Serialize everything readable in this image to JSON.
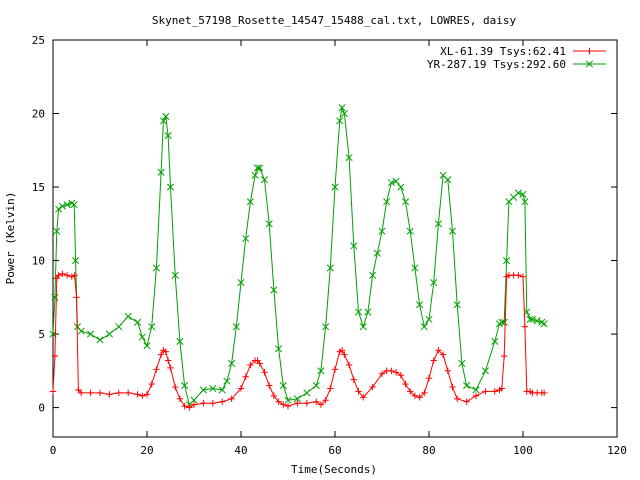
{
  "chart_data": {
    "type": "line",
    "title": "Skynet_57198_Rosette_14547_15488_cal.txt, LOWRES, daisy",
    "xlabel": "Time(Seconds)",
    "ylabel": "Power (Kelvin)",
    "xlim": [
      0,
      120
    ],
    "ylim": [
      -2,
      25
    ],
    "xticks": [
      0,
      20,
      40,
      60,
      80,
      100,
      120
    ],
    "yticks": [
      0,
      5,
      10,
      15,
      20,
      25
    ],
    "grid": false,
    "legend_position": "top-right",
    "series": [
      {
        "name": "XL-61.39 Tsys:62.41",
        "color": "#ff0000",
        "marker": "plus",
        "x": [
          0,
          0.4,
          0.8,
          1.2,
          2,
          3,
          4,
          4.6,
          5,
          5.4,
          6,
          8,
          10,
          12,
          14,
          16,
          18,
          19,
          20,
          21,
          22,
          23,
          23.5,
          24,
          24.5,
          25,
          26,
          27,
          28,
          29,
          30,
          32,
          34,
          36,
          38,
          40,
          41,
          42,
          43,
          43.5,
          44,
          45,
          46,
          47,
          48,
          49,
          50,
          52,
          54,
          56,
          57,
          58,
          59,
          60,
          61,
          61.5,
          62,
          63,
          64,
          65,
          66,
          68,
          70,
          71,
          72,
          73,
          74,
          75,
          76,
          77,
          78,
          79,
          80,
          81,
          82,
          83,
          84,
          85,
          86,
          88,
          90,
          92,
          94,
          95,
          95.5,
          96,
          96.5,
          97,
          98,
          99,
          100,
          100.4,
          100.8,
          101.5,
          102,
          103,
          104,
          104.5
        ],
        "y": [
          1.1,
          3.5,
          8.8,
          9.0,
          9.1,
          9.0,
          8.9,
          9.0,
          7.5,
          1.2,
          1.0,
          1.0,
          1.0,
          0.9,
          1.0,
          1.0,
          0.9,
          0.8,
          0.9,
          1.6,
          2.6,
          3.6,
          3.9,
          3.8,
          3.2,
          2.7,
          1.4,
          0.6,
          0.1,
          0.0,
          0.2,
          0.3,
          0.3,
          0.4,
          0.6,
          1.3,
          2.1,
          2.9,
          3.2,
          3.2,
          3.0,
          2.4,
          1.5,
          0.8,
          0.4,
          0.2,
          0.1,
          0.3,
          0.3,
          0.4,
          0.2,
          0.5,
          1.3,
          2.6,
          3.8,
          3.9,
          3.6,
          2.9,
          1.9,
          1.1,
          0.7,
          1.4,
          2.3,
          2.5,
          2.5,
          2.4,
          2.2,
          1.6,
          1.1,
          0.8,
          0.7,
          1.0,
          2.0,
          3.2,
          3.9,
          3.6,
          2.5,
          1.4,
          0.6,
          0.4,
          0.8,
          1.1,
          1.1,
          1.2,
          1.3,
          3.5,
          8.9,
          9.0,
          9.0,
          9.0,
          8.9,
          5.5,
          1.1,
          1.1,
          1.0,
          1.0,
          1.0,
          1.0
        ]
      },
      {
        "name": "YR-287.19 Tsys:292.60",
        "color": "#00a000",
        "marker": "x",
        "x": [
          0,
          0.4,
          0.8,
          1.2,
          2,
          3,
          4,
          4.5,
          4.8,
          5.2,
          6,
          8,
          10,
          12,
          14,
          16,
          18,
          19,
          20,
          21,
          22,
          23,
          23.5,
          24,
          24.5,
          25,
          26,
          27,
          28,
          29,
          30,
          32,
          34,
          36,
          37,
          38,
          39,
          40,
          41,
          42,
          43,
          43.5,
          44,
          45,
          46,
          47,
          48,
          49,
          50,
          52,
          54,
          56,
          57,
          58,
          59,
          60,
          61,
          61.5,
          62,
          63,
          64,
          65,
          66,
          67,
          68,
          69,
          70,
          71,
          72,
          73,
          74,
          75,
          76,
          77,
          78,
          79,
          80,
          81,
          82,
          83,
          84,
          85,
          86,
          87,
          88,
          90,
          92,
          94,
          95,
          95.5,
          96,
          96.5,
          97,
          98,
          99,
          100,
          100.4,
          100.8,
          101.5,
          102,
          103,
          104,
          104.5
        ],
        "y": [
          5.0,
          7.5,
          12.0,
          13.5,
          13.7,
          13.8,
          13.9,
          13.8,
          10.0,
          5.5,
          5.2,
          5.0,
          4.6,
          5.0,
          5.5,
          6.2,
          5.8,
          4.8,
          4.2,
          5.5,
          9.5,
          16.0,
          19.5,
          19.8,
          18.5,
          15.0,
          9.0,
          4.5,
          1.5,
          0.2,
          0.5,
          1.2,
          1.3,
          1.2,
          1.8,
          3.0,
          5.5,
          8.5,
          11.5,
          14.0,
          15.8,
          16.3,
          16.3,
          15.5,
          12.5,
          8.0,
          4.0,
          1.5,
          0.5,
          0.6,
          1.0,
          1.5,
          2.5,
          5.5,
          9.5,
          15.0,
          19.5,
          20.4,
          20.0,
          17.0,
          11.0,
          6.5,
          5.5,
          6.5,
          9.0,
          10.5,
          12.0,
          14.0,
          15.3,
          15.4,
          15.0,
          14.0,
          12.0,
          9.5,
          7.0,
          5.5,
          6.0,
          8.5,
          12.5,
          15.8,
          15.5,
          12.0,
          7.0,
          3.0,
          1.5,
          1.2,
          2.5,
          4.5,
          5.7,
          5.8,
          5.8,
          10.0,
          14.0,
          14.3,
          14.6,
          14.5,
          14.0,
          6.5,
          6.0,
          6.0,
          5.9,
          5.8,
          5.7
        ]
      }
    ]
  }
}
